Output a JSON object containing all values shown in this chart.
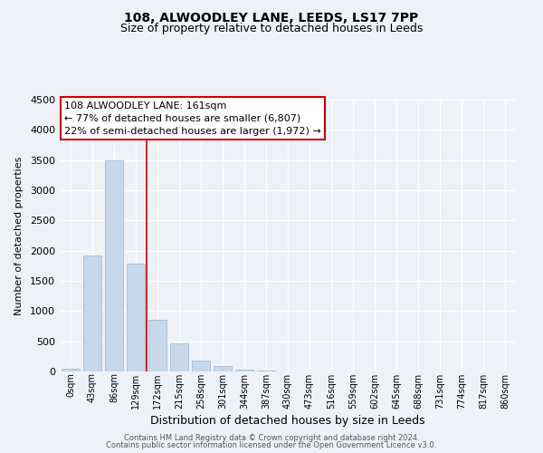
{
  "title": "108, ALWOODLEY LANE, LEEDS, LS17 7PP",
  "subtitle": "Size of property relative to detached houses in Leeds",
  "xlabel": "Distribution of detached houses by size in Leeds",
  "ylabel": "Number of detached properties",
  "bar_labels": [
    "0sqm",
    "43sqm",
    "86sqm",
    "129sqm",
    "172sqm",
    "215sqm",
    "258sqm",
    "301sqm",
    "344sqm",
    "387sqm",
    "430sqm",
    "473sqm",
    "516sqm",
    "559sqm",
    "602sqm",
    "645sqm",
    "688sqm",
    "731sqm",
    "774sqm",
    "817sqm",
    "860sqm"
  ],
  "bar_values": [
    50,
    1920,
    3500,
    1780,
    860,
    460,
    175,
    85,
    30,
    15,
    5,
    3,
    0,
    0,
    0,
    0,
    0,
    0,
    0,
    0,
    0
  ],
  "bar_color": "#c8d8eb",
  "bar_edge_color": "#9ab5d0",
  "highlight_color": "#cc0000",
  "red_line_index": 3.5,
  "annotation_text": "108 ALWOODLEY LANE: 161sqm\n← 77% of detached houses are smaller (6,807)\n22% of semi-detached houses are larger (1,972) →",
  "annotation_box_facecolor": "#ffffff",
  "annotation_box_edgecolor": "#cc0000",
  "ylim": [
    0,
    4500
  ],
  "yticks": [
    0,
    500,
    1000,
    1500,
    2000,
    2500,
    3000,
    3500,
    4000,
    4500
  ],
  "footer_line1": "Contains HM Land Registry data © Crown copyright and database right 2024.",
  "footer_line2": "Contains public sector information licensed under the Open Government Licence v3.0.",
  "background_color": "#eef2f8",
  "grid_color": "#ffffff",
  "title_fontsize": 10,
  "subtitle_fontsize": 9,
  "xlabel_fontsize": 9,
  "ylabel_fontsize": 8,
  "xtick_fontsize": 7,
  "ytick_fontsize": 8,
  "annotation_fontsize": 8,
  "footer_fontsize": 6
}
